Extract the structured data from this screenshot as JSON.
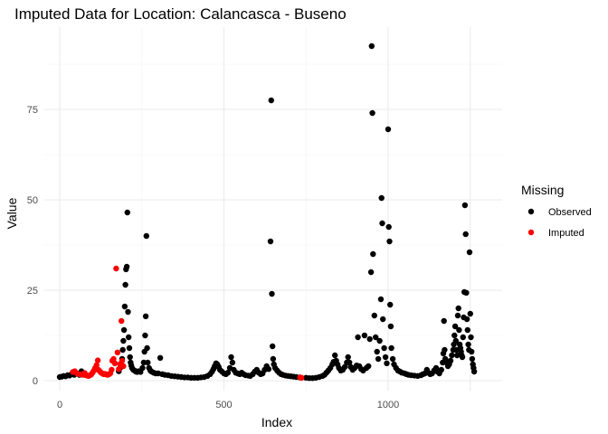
{
  "chart_data": {
    "type": "scatter",
    "title": "Imputed Data for Location: Calancasca - Buseno",
    "xlabel": "Index",
    "ylabel": "Value",
    "xlim": [
      -30,
      1350
    ],
    "ylim": [
      -3,
      97
    ],
    "x_ticks": [
      0,
      500,
      1000
    ],
    "y_ticks": [
      0,
      25,
      50,
      75
    ],
    "grid": true,
    "legend": {
      "title": "Missing",
      "placement": "right",
      "entries": [
        {
          "label": "Observed",
          "color": "#000000"
        },
        {
          "label": "Imputed",
          "color": "#ff0000"
        }
      ]
    },
    "series": [
      {
        "name": "Observed",
        "color": "#000000",
        "points": [
          [
            0,
            1.0
          ],
          [
            6,
            1.1
          ],
          [
            12,
            1.3
          ],
          [
            18,
            1.2
          ],
          [
            24,
            1.5
          ],
          [
            30,
            1.4
          ],
          [
            36,
            1.8
          ],
          [
            44,
            1.6
          ],
          [
            52,
            2.0
          ],
          [
            60,
            1.6
          ],
          [
            66,
            2.6
          ],
          [
            72,
            1.9
          ],
          [
            180,
            2.6
          ],
          [
            184,
            3.5
          ],
          [
            188,
            4.2
          ],
          [
            190,
            6.0
          ],
          [
            192,
            8.5
          ],
          [
            194,
            11.0
          ],
          [
            196,
            14.0
          ],
          [
            198,
            20.5
          ],
          [
            200,
            26.5
          ],
          [
            202,
            30.8
          ],
          [
            204,
            31.5
          ],
          [
            206,
            46.5
          ],
          [
            208,
            19.0
          ],
          [
            210,
            12.0
          ],
          [
            212,
            9.0
          ],
          [
            214,
            6.5
          ],
          [
            216,
            5.0
          ],
          [
            218,
            4.2
          ],
          [
            220,
            3.5
          ],
          [
            224,
            3.0
          ],
          [
            228,
            2.8
          ],
          [
            232,
            2.5
          ],
          [
            236,
            2.4
          ],
          [
            240,
            2.6
          ],
          [
            246,
            2.4
          ],
          [
            252,
            3.5
          ],
          [
            256,
            5.0
          ],
          [
            258,
            8.0
          ],
          [
            260,
            12.5
          ],
          [
            262,
            17.8
          ],
          [
            264,
            40.0
          ],
          [
            266,
            9.0
          ],
          [
            268,
            5.0
          ],
          [
            272,
            3.5
          ],
          [
            276,
            2.8
          ],
          [
            280,
            2.5
          ],
          [
            286,
            2.2
          ],
          [
            292,
            2.0
          ],
          [
            300,
            2.0
          ],
          [
            306,
            6.3
          ],
          [
            312,
            1.8
          ],
          [
            320,
            1.6
          ],
          [
            330,
            1.5
          ],
          [
            340,
            1.3
          ],
          [
            350,
            1.2
          ],
          [
            360,
            1.1
          ],
          [
            370,
            1.0
          ],
          [
            380,
            0.9
          ],
          [
            390,
            0.9
          ],
          [
            400,
            0.8
          ],
          [
            410,
            0.8
          ],
          [
            420,
            0.8
          ],
          [
            430,
            0.9
          ],
          [
            440,
            1.0
          ],
          [
            450,
            1.3
          ],
          [
            458,
            1.8
          ],
          [
            464,
            2.5
          ],
          [
            468,
            3.2
          ],
          [
            472,
            4.0
          ],
          [
            476,
            4.8
          ],
          [
            480,
            4.5
          ],
          [
            484,
            3.8
          ],
          [
            488,
            3.0
          ],
          [
            494,
            2.5
          ],
          [
            500,
            2.0
          ],
          [
            506,
            1.8
          ],
          [
            512,
            2.2
          ],
          [
            518,
            3.5
          ],
          [
            522,
            6.5
          ],
          [
            526,
            5.0
          ],
          [
            530,
            3.0
          ],
          [
            536,
            2.2
          ],
          [
            542,
            2.0
          ],
          [
            548,
            1.8
          ],
          [
            554,
            2.2
          ],
          [
            560,
            1.8
          ],
          [
            566,
            1.5
          ],
          [
            574,
            1.4
          ],
          [
            580,
            1.3
          ],
          [
            588,
            1.8
          ],
          [
            594,
            2.5
          ],
          [
            600,
            3.0
          ],
          [
            606,
            2.2
          ],
          [
            612,
            1.8
          ],
          [
            618,
            2.0
          ],
          [
            624,
            3.0
          ],
          [
            630,
            4.0
          ],
          [
            636,
            3.2
          ],
          [
            642,
            38.5
          ],
          [
            644,
            77.5
          ],
          [
            646,
            24.0
          ],
          [
            648,
            9.5
          ],
          [
            650,
            6.0
          ],
          [
            652,
            4.5
          ],
          [
            656,
            3.5
          ],
          [
            662,
            2.8
          ],
          [
            668,
            2.2
          ],
          [
            674,
            1.8
          ],
          [
            680,
            1.6
          ],
          [
            688,
            1.4
          ],
          [
            696,
            1.3
          ],
          [
            704,
            1.2
          ],
          [
            712,
            1.1
          ],
          [
            720,
            1.0
          ],
          [
            730,
            0.9
          ],
          [
            736,
            0.8
          ],
          [
            750,
            0.8
          ],
          [
            760,
            0.7
          ],
          [
            770,
            0.7
          ],
          [
            780,
            0.8
          ],
          [
            790,
            1.0
          ],
          [
            800,
            1.3
          ],
          [
            806,
            1.6
          ],
          [
            812,
            2.2
          ],
          [
            818,
            2.8
          ],
          [
            824,
            3.5
          ],
          [
            830,
            4.5
          ],
          [
            834,
            5.2
          ],
          [
            838,
            7.0
          ],
          [
            842,
            5.5
          ],
          [
            846,
            4.5
          ],
          [
            850,
            3.5
          ],
          [
            856,
            2.8
          ],
          [
            862,
            3.0
          ],
          [
            868,
            3.8
          ],
          [
            874,
            5.0
          ],
          [
            878,
            6.5
          ],
          [
            882,
            5.0
          ],
          [
            886,
            3.8
          ],
          [
            892,
            3.0
          ],
          [
            898,
            3.5
          ],
          [
            904,
            4.2
          ],
          [
            908,
            12.0
          ],
          [
            912,
            4.0
          ],
          [
            918,
            3.2
          ],
          [
            924,
            2.8
          ],
          [
            928,
            12.5
          ],
          [
            934,
            3.5
          ],
          [
            940,
            4.0
          ],
          [
            944,
            11.5
          ],
          [
            948,
            30.0
          ],
          [
            950,
            92.5
          ],
          [
            952,
            74.0
          ],
          [
            954,
            35.0
          ],
          [
            958,
            18.0
          ],
          [
            962,
            12.0
          ],
          [
            966,
            8.0
          ],
          [
            970,
            6.0
          ],
          [
            974,
            11.0
          ],
          [
            978,
            22.5
          ],
          [
            980,
            50.5
          ],
          [
            982,
            43.5
          ],
          [
            984,
            17.0
          ],
          [
            988,
            9.0
          ],
          [
            992,
            6.5
          ],
          [
            996,
            4.8
          ],
          [
            1000,
            69.5
          ],
          [
            1002,
            42.5
          ],
          [
            1004,
            38.5
          ],
          [
            1006,
            21.0
          ],
          [
            1008,
            15.0
          ],
          [
            1010,
            9.0
          ],
          [
            1014,
            6.0
          ],
          [
            1018,
            4.5
          ],
          [
            1024,
            3.5
          ],
          [
            1030,
            2.8
          ],
          [
            1036,
            2.5
          ],
          [
            1042,
            2.2
          ],
          [
            1050,
            2.0
          ],
          [
            1056,
            1.8
          ],
          [
            1062,
            1.6
          ],
          [
            1070,
            1.5
          ],
          [
            1080,
            1.4
          ],
          [
            1090,
            1.3
          ],
          [
            1100,
            1.5
          ],
          [
            1106,
            1.8
          ],
          [
            1112,
            2.0
          ],
          [
            1118,
            3.0
          ],
          [
            1122,
            2.2
          ],
          [
            1128,
            1.8
          ],
          [
            1134,
            2.0
          ],
          [
            1140,
            2.8
          ],
          [
            1146,
            3.5
          ],
          [
            1150,
            2.5
          ],
          [
            1156,
            2.0
          ],
          [
            1162,
            3.0
          ],
          [
            1166,
            5.0
          ],
          [
            1168,
            7.5
          ],
          [
            1170,
            16.5
          ],
          [
            1172,
            8.5
          ],
          [
            1174,
            6.0
          ],
          [
            1178,
            5.0
          ],
          [
            1182,
            4.0
          ],
          [
            1186,
            4.5
          ],
          [
            1190,
            5.5
          ],
          [
            1194,
            7.0
          ],
          [
            1198,
            8.5
          ],
          [
            1200,
            10.0
          ],
          [
            1202,
            12.5
          ],
          [
            1204,
            15.0
          ],
          [
            1206,
            11.0
          ],
          [
            1208,
            8.5
          ],
          [
            1210,
            7.0
          ],
          [
            1212,
            18.0
          ],
          [
            1214,
            20.0
          ],
          [
            1216,
            14.0
          ],
          [
            1218,
            10.0
          ],
          [
            1220,
            9.0
          ],
          [
            1222,
            8.0
          ],
          [
            1224,
            7.0
          ],
          [
            1226,
            6.5
          ],
          [
            1228,
            12.0
          ],
          [
            1230,
            17.5
          ],
          [
            1232,
            24.5
          ],
          [
            1234,
            48.5
          ],
          [
            1236,
            40.5
          ],
          [
            1238,
            24.3
          ],
          [
            1240,
            17.0
          ],
          [
            1242,
            14.0
          ],
          [
            1244,
            10.0
          ],
          [
            1246,
            8.5
          ],
          [
            1248,
            35.5
          ],
          [
            1250,
            18.5
          ],
          [
            1252,
            12.0
          ],
          [
            1254,
            8.0
          ],
          [
            1256,
            6.0
          ],
          [
            1258,
            4.5
          ],
          [
            1260,
            3.5
          ],
          [
            1262,
            2.5
          ]
        ]
      },
      {
        "name": "Imputed",
        "color": "#ff0000",
        "points": [
          [
            40,
            2.4
          ],
          [
            46,
            2.6
          ],
          [
            54,
            1.9
          ],
          [
            62,
            1.8
          ],
          [
            70,
            1.6
          ],
          [
            76,
            2.1
          ],
          [
            80,
            1.5
          ],
          [
            84,
            1.4
          ],
          [
            88,
            1.3
          ],
          [
            92,
            1.5
          ],
          [
            96,
            1.7
          ],
          [
            100,
            2.2
          ],
          [
            104,
            2.8
          ],
          [
            108,
            3.5
          ],
          [
            112,
            4.3
          ],
          [
            116,
            5.6
          ],
          [
            118,
            3.0
          ],
          [
            122,
            2.6
          ],
          [
            126,
            2.2
          ],
          [
            130,
            2.0
          ],
          [
            134,
            1.8
          ],
          [
            138,
            1.9
          ],
          [
            142,
            1.7
          ],
          [
            146,
            1.6
          ],
          [
            150,
            1.8
          ],
          [
            154,
            2.0
          ],
          [
            158,
            3.0
          ],
          [
            160,
            5.5
          ],
          [
            164,
            6.0
          ],
          [
            168,
            4.8
          ],
          [
            172,
            31.0
          ],
          [
            176,
            7.8
          ],
          [
            180,
            3.2
          ],
          [
            184,
            4.6
          ],
          [
            188,
            16.5
          ],
          [
            190,
            5.5
          ],
          [
            194,
            4.0
          ],
          [
            732,
            0.9
          ],
          [
            736,
            0.8
          ]
        ]
      }
    ]
  }
}
